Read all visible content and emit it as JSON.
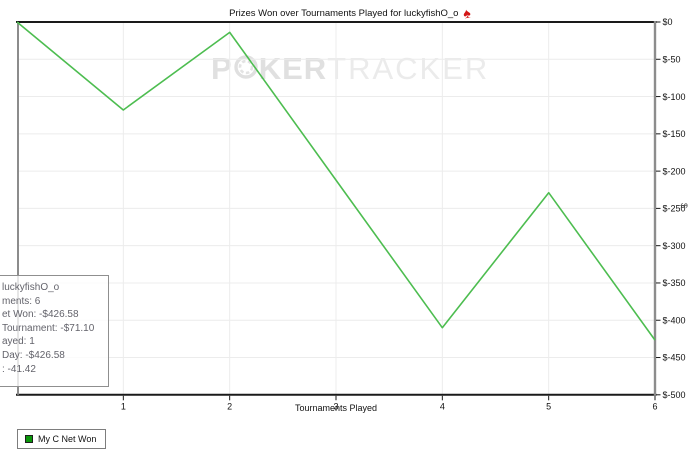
{
  "title": {
    "text": "Prizes Won over Tournaments Played for luckyfishO_o",
    "icon": "red-spade-icon"
  },
  "watermark": {
    "left": "P",
    "right": "KER",
    "tail": "TRACKER",
    "chip_icon": "poker-chip-icon"
  },
  "chart_data": {
    "type": "line",
    "title": "Prizes Won over Tournaments Played for luckyfishO_o",
    "xlabel": "Tournaments Played",
    "ylabel": "$",
    "xlim": [
      0,
      6
    ],
    "ylim": [
      -500,
      0
    ],
    "grid": true,
    "legend_position": "bottom-left",
    "y_axis_side": "right",
    "x_ticks": [
      "1",
      "2",
      "3",
      "4",
      "5",
      "6"
    ],
    "y_ticks": [
      "$0",
      "$-50",
      "$-100",
      "$-150",
      "$-200",
      "$-250",
      "$-300",
      "$-350",
      "$-400",
      "$-450",
      "$-500"
    ],
    "series": [
      {
        "name": "My C Net Won",
        "color": "#4dbd50",
        "x": [
          0,
          1,
          2,
          3,
          4,
          5,
          6
        ],
        "values": [
          0,
          -118,
          -14,
          -212,
          -410,
          -229,
          -426.58
        ]
      }
    ]
  },
  "legend": {
    "label": "My C Net Won",
    "swatch_color": "#0a960a"
  },
  "info_box": {
    "lines": [
      "luckyfishO_o",
      "ments: 6",
      "et Won: -$426.58",
      "Tournament: -$71.10",
      "ayed: 1",
      "Day: -$426.58",
      ": -41.42"
    ]
  },
  "colors": {
    "line": "#4dbd50",
    "legend_swatch": "#0a960a",
    "grid": "#ececec",
    "axis_dark": "#1a1a1a",
    "axis_gray": "#8c8c8c",
    "tick_text": "#111111",
    "watermark_bold": "#e0e0e0",
    "watermark_light": "#ebebeb",
    "spade": "#d31616",
    "info_text": "#63636b"
  }
}
